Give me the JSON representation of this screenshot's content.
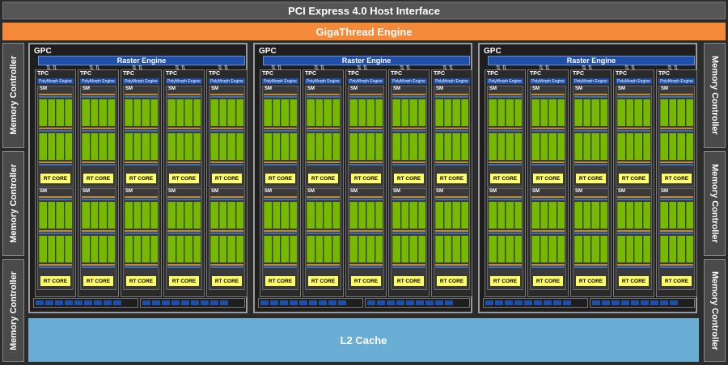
{
  "pcie": "PCI Express 4.0 Host Interface",
  "gigathread": "GigaThread Engine",
  "l2": "L2 Cache",
  "memory_controller": "Memory Controller",
  "gpc_label": "GPC",
  "raster_engine": "Raster Engine",
  "tpc_label": "TPC",
  "polymorph": "PolyMorph Engine",
  "sm_label": "SM",
  "rt_core": "RT CORE",
  "colors": {
    "cores": "#76b900",
    "rt": "#ffff66",
    "giga": "#f5893a",
    "l2": "#6aaed6",
    "raster": "#1f4fa8"
  }
}
